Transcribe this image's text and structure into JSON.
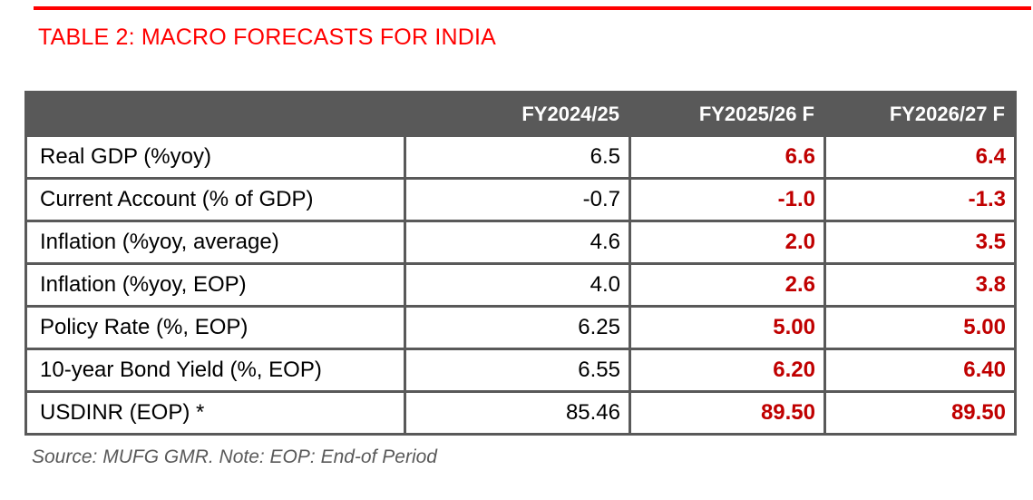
{
  "colors": {
    "red": "#ff0000",
    "dark_red": "#c00000",
    "header_bg": "#595959",
    "border": "#595959",
    "text": "#000000",
    "muted": "#595959",
    "page_bg": "#ffffff"
  },
  "title": {
    "text": "TABLE 2: MACRO FORECASTS FOR INDIA"
  },
  "table": {
    "header": [
      "",
      "FY2024/25",
      "FY2025/26 F",
      "FY2026/27 F"
    ],
    "rows": [
      [
        "Real GDP (%yoy)",
        "6.5",
        "6.6",
        "6.4"
      ],
      [
        "Current Account (% of GDP)",
        "-0.7",
        "-1.0",
        "-1.3"
      ],
      [
        "Inflation (%yoy, average)",
        "4.6",
        "2.0",
        "3.5"
      ],
      [
        "Inflation (%yoy, EOP)",
        "4.0",
        "2.6",
        "3.8"
      ],
      [
        "Policy Rate (%, EOP)",
        "6.25",
        "5.00",
        "5.00"
      ],
      [
        "10-year Bond Yield (%, EOP)",
        "6.55",
        "6.20",
        "6.40"
      ],
      [
        "USDINR (EOP) *",
        "85.46",
        "89.50",
        "89.50"
      ]
    ]
  },
  "footer": {
    "text": "Source: MUFG GMR. Note: EOP: End-of Period"
  },
  "chart_data": {
    "type": "table",
    "title": "TABLE 2: MACRO FORECASTS FOR INDIA",
    "columns": [
      "",
      "FY2024/25",
      "FY2025/26 F",
      "FY2026/27 F"
    ],
    "forecast_columns": [
      "FY2025/26 F",
      "FY2026/27 F"
    ],
    "rows": [
      {
        "label": "Real GDP (%yoy)",
        "values": [
          6.5,
          6.6,
          6.4
        ]
      },
      {
        "label": "Current Account (% of GDP)",
        "values": [
          -0.7,
          -1.0,
          -1.3
        ]
      },
      {
        "label": "Inflation (%yoy, average)",
        "values": [
          4.6,
          2.0,
          3.5
        ]
      },
      {
        "label": "Inflation (%yoy, EOP)",
        "values": [
          4.0,
          2.6,
          3.8
        ]
      },
      {
        "label": "Policy Rate (%, EOP)",
        "values": [
          6.25,
          5.0,
          5.0
        ]
      },
      {
        "label": "10-year Bond Yield (%, EOP)",
        "values": [
          6.55,
          6.2,
          6.4
        ]
      },
      {
        "label": "USDINR (EOP) *",
        "values": [
          85.46,
          89.5,
          89.5
        ]
      }
    ],
    "note": "Source: MUFG GMR. Note: EOP: End-of Period"
  }
}
